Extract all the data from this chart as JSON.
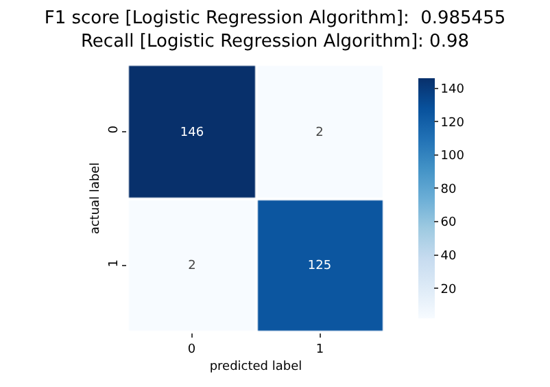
{
  "chart_data": {
    "type": "heatmap",
    "title": "F1 score [Logistic Regression Algorithm]:  0.985455\nRecall [Logistic Regression Algorithm]: 0.98",
    "xlabel": "predicted label",
    "ylabel": "actual label",
    "categories": [
      "0",
      "1"
    ],
    "y_categories": [
      "0",
      "1"
    ],
    "cells": [
      [
        146,
        2
      ],
      [
        2,
        125
      ]
    ],
    "data_labels": true,
    "clim": [
      2,
      146
    ],
    "cticks": [
      20,
      40,
      60,
      80,
      100,
      120,
      140
    ]
  }
}
